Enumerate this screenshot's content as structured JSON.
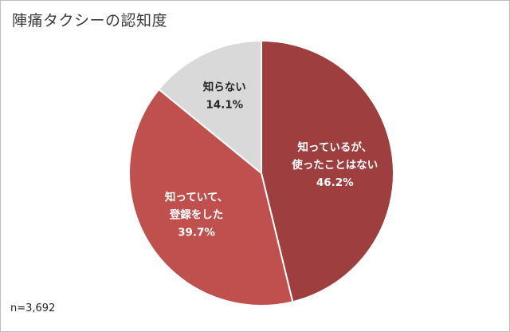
{
  "title": "陣痛タクシーの認知度",
  "sample_size": "n=3,692",
  "chart_data": {
    "type": "pie",
    "title": "陣痛タクシーの認知度",
    "start_angle_deg": 0,
    "direction": "clockwise",
    "slices": [
      {
        "label_lines": [
          "知っているが、",
          "使ったことはない"
        ],
        "value": 46.2,
        "value_label": "46.2%",
        "color": "#9e3e3e",
        "text_color": "#ffffff"
      },
      {
        "label_lines": [
          "知っていて、",
          "登録をした"
        ],
        "value": 39.7,
        "value_label": "39.7%",
        "color": "#c0504d",
        "text_color": "#ffffff"
      },
      {
        "label_lines": [
          "知らない"
        ],
        "value": 14.1,
        "value_label": "14.1%",
        "color": "#d9d9d9",
        "text_color": "#262626"
      }
    ],
    "note": "n=3,692"
  }
}
